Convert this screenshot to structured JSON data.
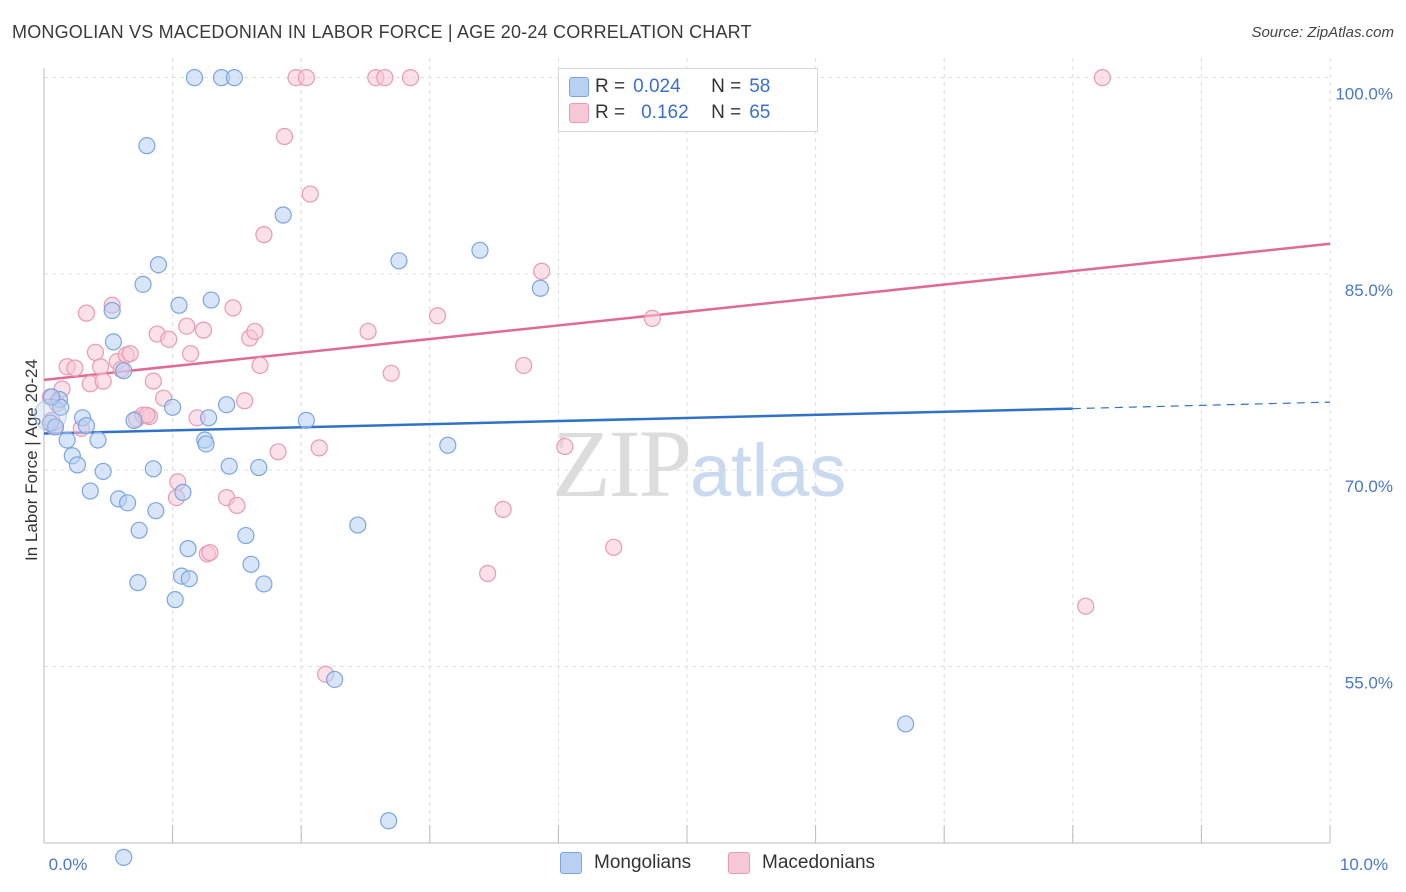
{
  "title": "MONGOLIAN VS MACEDONIAN IN LABOR FORCE | AGE 20-24 CORRELATION CHART",
  "source": "Source: ZipAtlas.com",
  "watermark": {
    "zip": "ZIP",
    "atlas": "atlas"
  },
  "legend": {
    "r_label": "R =",
    "n_label": "N =",
    "rows": [
      {
        "series": "Mongolians",
        "r": "0.024",
        "n": "58"
      },
      {
        "series": "Macedonians",
        "r": "0.162",
        "n": "65"
      }
    ]
  },
  "colors": {
    "blue_fill": "#b8d0f2",
    "blue_stroke": "#7aa6e0",
    "blue_line": "#2f72c8",
    "pink_fill": "#f6c7d6",
    "pink_stroke": "#ea9ab3",
    "pink_line": "#e06a96",
    "tick_text": "#4a78c4",
    "grid": "#dddddd"
  },
  "chart_data": {
    "type": "scatter",
    "title": "MONGOLIAN VS MACEDONIAN IN LABOR FORCE | AGE 20-24 CORRELATION CHART",
    "xlabel": "",
    "ylabel": "In Labor Force | Age 20-24",
    "xlim": [
      0,
      10
    ],
    "ylim": [
      41.5,
      101.5
    ],
    "x_tick_labels": [
      {
        "value": 0,
        "label": "0.0%"
      },
      {
        "value": 10,
        "label": "10.0%"
      }
    ],
    "y_tick_labels": [
      {
        "value": 100,
        "label": "100.0%"
      },
      {
        "value": 85,
        "label": "85.0%"
      },
      {
        "value": 70,
        "label": "70.0%"
      },
      {
        "value": 55,
        "label": "55.0%"
      }
    ],
    "grid": true,
    "legend_position": "top-center",
    "series": [
      {
        "name": "Mongolians",
        "r": 0.024,
        "n": 58,
        "trend": {
          "x0": 0,
          "y0": 72.8,
          "x1": 8.0,
          "y1": 74.7,
          "dashed_to_x": 10,
          "dashed_y": 75.2
        },
        "points": [
          [
            0.05,
            73.6
          ],
          [
            0.09,
            73.3
          ],
          [
            0.12,
            75.4
          ],
          [
            0.13,
            74.8
          ],
          [
            0.18,
            72.3
          ],
          [
            0.22,
            71.1
          ],
          [
            0.26,
            70.4
          ],
          [
            0.3,
            74.0
          ],
          [
            0.33,
            73.4
          ],
          [
            0.36,
            68.4
          ],
          [
            0.42,
            72.3
          ],
          [
            0.46,
            69.9
          ],
          [
            0.53,
            82.2
          ],
          [
            0.54,
            79.8
          ],
          [
            0.58,
            67.8
          ],
          [
            0.62,
            77.6
          ],
          [
            0.65,
            67.5
          ],
          [
            0.7,
            73.8
          ],
          [
            0.73,
            61.4
          ],
          [
            0.74,
            65.4
          ],
          [
            0.77,
            84.2
          ],
          [
            0.8,
            94.8
          ],
          [
            0.85,
            70.1
          ],
          [
            0.87,
            66.9
          ],
          [
            0.89,
            85.7
          ],
          [
            1.0,
            74.8
          ],
          [
            1.02,
            60.1
          ],
          [
            1.05,
            82.6
          ],
          [
            1.07,
            61.9
          ],
          [
            1.08,
            68.3
          ],
          [
            1.12,
            64.0
          ],
          [
            1.13,
            61.7
          ],
          [
            1.17,
            100.0
          ],
          [
            1.25,
            72.3
          ],
          [
            1.26,
            72.0
          ],
          [
            1.28,
            74.0
          ],
          [
            1.3,
            83.0
          ],
          [
            1.38,
            100.0
          ],
          [
            1.42,
            75.0
          ],
          [
            1.44,
            70.3
          ],
          [
            1.48,
            100.0
          ],
          [
            1.57,
            65.0
          ],
          [
            1.61,
            62.8
          ],
          [
            1.67,
            70.2
          ],
          [
            1.71,
            61.3
          ],
          [
            1.86,
            89.5
          ],
          [
            2.04,
            73.8
          ],
          [
            2.26,
            54.0
          ],
          [
            2.44,
            65.8
          ],
          [
            2.68,
            43.2
          ],
          [
            2.76,
            86.0
          ],
          [
            3.14,
            71.9
          ],
          [
            3.39,
            86.8
          ],
          [
            3.86,
            83.9
          ],
          [
            5.65,
            100.0
          ],
          [
            6.7,
            50.6
          ],
          [
            0.62,
            40.4
          ],
          [
            0.06,
            75.6
          ]
        ]
      },
      {
        "name": "Macedonians",
        "r": 0.162,
        "n": 65,
        "trend": {
          "x0": 0,
          "y0": 76.9,
          "x1": 10,
          "y1": 87.3
        },
        "points": [
          [
            0.05,
            75.6
          ],
          [
            0.08,
            73.3
          ],
          [
            0.1,
            75.1
          ],
          [
            0.14,
            76.2
          ],
          [
            0.18,
            77.9
          ],
          [
            0.24,
            77.8
          ],
          [
            0.29,
            73.2
          ],
          [
            0.33,
            82.0
          ],
          [
            0.36,
            76.6
          ],
          [
            0.4,
            79.0
          ],
          [
            0.44,
            77.9
          ],
          [
            0.46,
            76.8
          ],
          [
            0.53,
            82.6
          ],
          [
            0.57,
            78.3
          ],
          [
            0.6,
            77.7
          ],
          [
            0.64,
            78.8
          ],
          [
            0.67,
            78.9
          ],
          [
            0.72,
            73.9
          ],
          [
            0.77,
            74.2
          ],
          [
            0.82,
            74.1
          ],
          [
            0.85,
            76.8
          ],
          [
            0.88,
            80.4
          ],
          [
            0.93,
            75.5
          ],
          [
            0.97,
            80.0
          ],
          [
            1.03,
            67.9
          ],
          [
            1.04,
            69.1
          ],
          [
            1.11,
            81.0
          ],
          [
            1.14,
            78.9
          ],
          [
            1.19,
            74.0
          ],
          [
            1.24,
            80.7
          ],
          [
            1.27,
            63.6
          ],
          [
            1.29,
            63.7
          ],
          [
            1.42,
            67.9
          ],
          [
            1.47,
            82.4
          ],
          [
            1.5,
            67.3
          ],
          [
            1.56,
            75.3
          ],
          [
            1.6,
            80.1
          ],
          [
            1.64,
            80.6
          ],
          [
            1.68,
            78.0
          ],
          [
            1.71,
            88.0
          ],
          [
            1.82,
            71.4
          ],
          [
            1.87,
            95.5
          ],
          [
            1.96,
            100.0
          ],
          [
            2.04,
            100.0
          ],
          [
            2.07,
            91.1
          ],
          [
            2.14,
            71.7
          ],
          [
            2.19,
            54.4
          ],
          [
            2.52,
            80.6
          ],
          [
            2.58,
            100.0
          ],
          [
            2.65,
            100.0
          ],
          [
            2.7,
            77.4
          ],
          [
            2.85,
            100.0
          ],
          [
            3.06,
            81.8
          ],
          [
            3.45,
            62.1
          ],
          [
            3.57,
            67.0
          ],
          [
            3.73,
            78.0
          ],
          [
            3.87,
            85.2
          ],
          [
            4.05,
            71.8
          ],
          [
            4.43,
            64.1
          ],
          [
            4.49,
            100.0
          ],
          [
            4.73,
            81.6
          ],
          [
            8.1,
            59.6
          ],
          [
            8.23,
            100.0
          ],
          [
            0.06,
            73.8
          ],
          [
            0.8,
            74.2
          ]
        ]
      }
    ]
  }
}
